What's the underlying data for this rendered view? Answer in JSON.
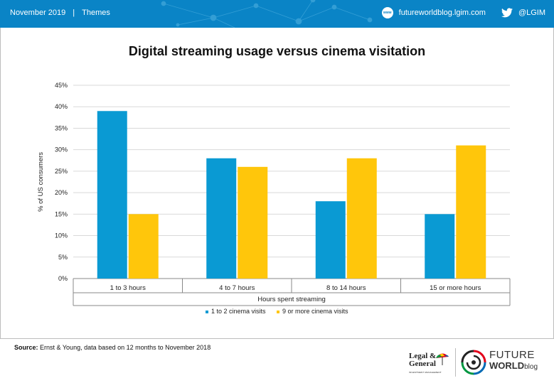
{
  "header": {
    "date": "November 2019",
    "separator": "|",
    "section": "Themes",
    "website": "futureworldblog.lgim.com",
    "www_badge": "www",
    "twitter": "@LGIM",
    "icons": [
      "www-icon",
      "twitter-icon"
    ]
  },
  "chart_data": {
    "type": "bar",
    "title": "Digital streaming usage versus cinema visitation",
    "xlabel": "Hours spent streaming",
    "ylabel": "% of US consumers",
    "categories": [
      "1 to 3 hours",
      "4 to 7 hours",
      "8 to 14 hours",
      "15 or more hours"
    ],
    "series": [
      {
        "name": "1 to 2 cinema visits",
        "values": [
          39,
          28,
          18,
          15
        ],
        "color": "#0a9ad3"
      },
      {
        "name": "9 or more cinema visits",
        "values": [
          15,
          26,
          28,
          31
        ],
        "color": "#ffc60b"
      }
    ],
    "ylim": [
      0,
      45
    ],
    "yticks": [
      0,
      5,
      10,
      15,
      20,
      25,
      30,
      35,
      40,
      45
    ],
    "ytick_labels": [
      "0%",
      "5%",
      "10%",
      "15%",
      "20%",
      "25%",
      "30%",
      "35%",
      "40%",
      "45%"
    ],
    "grid": true,
    "legend_position": "bottom"
  },
  "footer": {
    "source_label": "Source:",
    "source_text": "Ernst & Young, data based on 12 months to November 2018",
    "lg_logo_line1": "Legal &",
    "lg_logo_line2": "General",
    "lg_logo_sub": "INVESTMENT MANAGEMENT",
    "fw_logo_line1": "FUTURE",
    "fw_logo_line2": "WORLD",
    "fw_logo_suffix": "blog"
  }
}
